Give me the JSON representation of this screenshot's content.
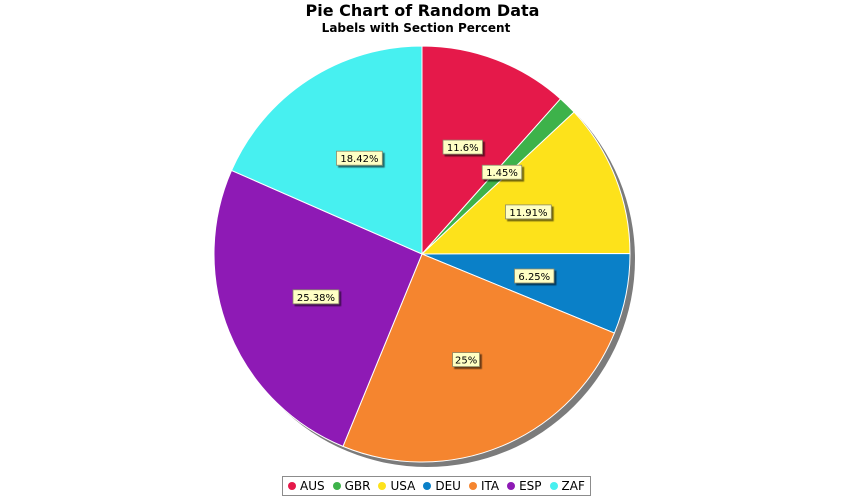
{
  "chart_data": {
    "type": "pie",
    "title": "Pie Chart of Random Data",
    "subtitle": "Labels with Section Percent",
    "categories": [
      "AUS",
      "GBR",
      "USA",
      "DEU",
      "ITA",
      "ESP",
      "ZAF"
    ],
    "values": [
      11.6,
      1.45,
      11.91,
      6.25,
      25,
      25.38,
      18.42
    ],
    "labels": [
      "11.6%",
      "1.45%",
      "11.91%",
      "6.25%",
      "25%",
      "25.38%",
      "18.42%"
    ],
    "colors": [
      "#e5194a",
      "#3db24a",
      "#fde21b",
      "#0a80c8",
      "#f5852f",
      "#8e1ab5",
      "#47f0f0"
    ],
    "legend_position": "bottom",
    "start_angle": "12 o'clock",
    "direction": "clockwise"
  }
}
